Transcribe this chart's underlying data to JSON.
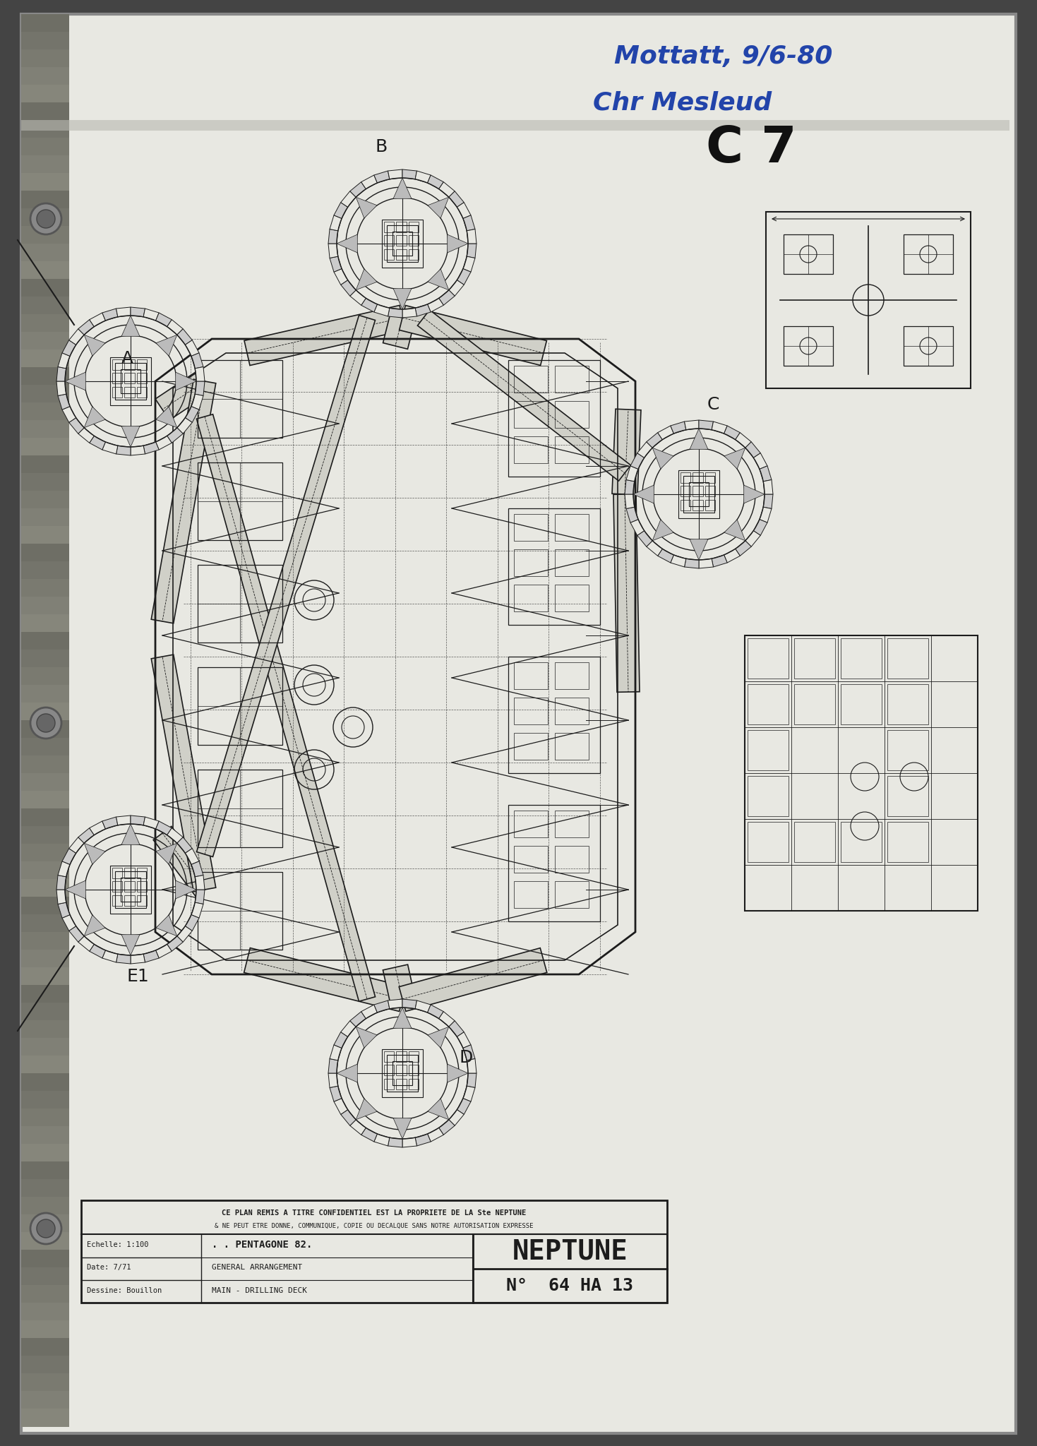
{
  "background_color": "#444444",
  "paper_color": "#dcdcd5",
  "paper_light": "#e8e8e2",
  "fig_width": 14.69,
  "fig_height": 20.48,
  "lc": "#1c1c1c",
  "blue_ink": "#2244aa",
  "title_line1": "CE PLAN REMIS A TITRE CONFIDENTIEL EST LA PROPRIETE DE LA Ste NEPTUNE",
  "title_line2": "& NE PEUT ETRE DONNE, COMMUNIQUE, COPIE OU DECALQUE SANS NOTRE AUTORISATION EXPRESSE",
  "annotation1": "Mottatt, 9/6-80",
  "annotation2": "Chr Mesleud",
  "label_c7": "C 7",
  "neptune_text": "NEPTUNE",
  "number_text": "N°  64 HA 13",
  "echelle": "Echelle: 1:100",
  "date_text": "Date: 7/71",
  "dessine": "Dessine: Bouillon",
  "pentagone": ". . PENTAGONE 82.",
  "general_arr": "GENERAL ARRANGEMENT",
  "main_drilling": "MAIN - DRILLING DECK"
}
